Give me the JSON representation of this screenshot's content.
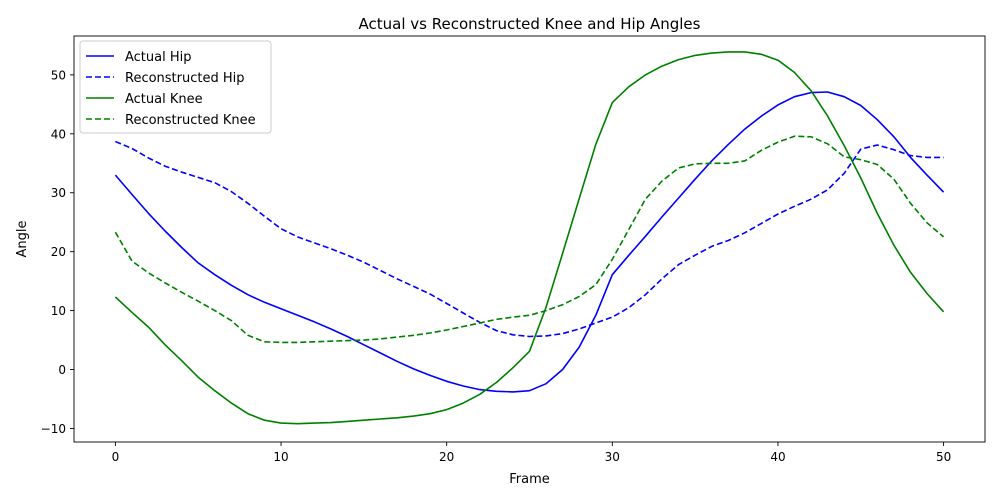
{
  "chart_data": {
    "type": "line",
    "title": "Actual vs Reconstructed Knee and Hip Angles",
    "xlabel": "Frame",
    "ylabel": "Angle",
    "xlim": [
      -2.5,
      52.5
    ],
    "ylim": [
      -12.3,
      56.6
    ],
    "xticks": [
      0,
      10,
      20,
      30,
      40,
      50
    ],
    "yticks": [
      -10,
      0,
      10,
      20,
      30,
      40,
      50
    ],
    "grid": false,
    "legend_position": "upper-left",
    "x": [
      0,
      1,
      2,
      3,
      4,
      5,
      6,
      7,
      8,
      9,
      10,
      11,
      12,
      13,
      14,
      15,
      16,
      17,
      18,
      19,
      20,
      21,
      22,
      23,
      24,
      25,
      26,
      27,
      28,
      29,
      30,
      31,
      32,
      33,
      34,
      35,
      36,
      37,
      38,
      39,
      40,
      41,
      42,
      43,
      44,
      45,
      46,
      47,
      48,
      49,
      50
    ],
    "series": [
      {
        "name": "Actual Hip",
        "color": "#0000ff",
        "dash": "solid",
        "values": [
          33.0,
          29.7,
          26.5,
          23.5,
          20.7,
          18.1,
          16.1,
          14.3,
          12.7,
          11.4,
          10.3,
          9.2,
          8.1,
          6.9,
          5.6,
          4.2,
          2.8,
          1.4,
          0.1,
          -1.0,
          -2.0,
          -2.8,
          -3.4,
          -3.7,
          -3.8,
          -3.6,
          -2.4,
          0.0,
          3.8,
          9.2,
          16.1,
          19.4,
          22.6,
          25.9,
          29.1,
          32.3,
          35.4,
          38.2,
          40.8,
          43.0,
          44.9,
          46.3,
          47.0,
          47.1,
          46.3,
          44.8,
          42.4,
          39.5,
          36.0,
          33.0,
          30.1
        ]
      },
      {
        "name": "Reconstructed Hip",
        "color": "#0000ff",
        "dash": "dashed",
        "values": [
          38.7,
          37.5,
          35.9,
          34.5,
          33.5,
          32.6,
          31.7,
          30.2,
          28.2,
          26.0,
          23.9,
          22.5,
          21.5,
          20.5,
          19.4,
          18.2,
          16.8,
          15.4,
          14.1,
          12.8,
          11.2,
          9.6,
          8.0,
          6.6,
          5.9,
          5.6,
          5.7,
          6.1,
          6.9,
          7.9,
          8.9,
          10.5,
          12.7,
          15.4,
          17.8,
          19.4,
          20.9,
          21.9,
          23.2,
          24.8,
          26.4,
          27.7,
          28.9,
          30.5,
          33.3,
          37.4,
          38.1,
          37.3,
          36.3,
          36.0,
          36.0
        ]
      },
      {
        "name": "Actual Knee",
        "color": "#008000",
        "dash": "solid",
        "values": [
          12.3,
          9.7,
          7.2,
          4.2,
          1.5,
          -1.3,
          -3.6,
          -5.7,
          -7.5,
          -8.6,
          -9.1,
          -9.2,
          -9.1,
          -9.0,
          -8.8,
          -8.6,
          -8.4,
          -8.2,
          -7.9,
          -7.5,
          -6.8,
          -5.7,
          -4.2,
          -2.2,
          0.3,
          3.1,
          10.6,
          19.7,
          29.0,
          38.2,
          45.3,
          48.0,
          50.0,
          51.5,
          52.6,
          53.3,
          53.7,
          53.9,
          53.9,
          53.5,
          52.5,
          50.4,
          47.3,
          43.0,
          38.0,
          32.5,
          26.5,
          21.1,
          16.5,
          12.9,
          9.8
        ]
      },
      {
        "name": "Reconstructed Knee",
        "color": "#008000",
        "dash": "dashed",
        "values": [
          23.3,
          18.4,
          16.4,
          14.7,
          13.1,
          11.6,
          10.0,
          8.3,
          5.8,
          4.7,
          4.6,
          4.6,
          4.7,
          4.8,
          4.9,
          5.0,
          5.2,
          5.5,
          5.8,
          6.2,
          6.7,
          7.3,
          7.9,
          8.5,
          8.9,
          9.2,
          10.0,
          11.0,
          12.4,
          14.4,
          18.7,
          23.8,
          28.9,
          32.0,
          34.2,
          34.9,
          35.0,
          35.0,
          35.4,
          37.2,
          38.6,
          39.6,
          39.5,
          38.3,
          36.1,
          35.6,
          34.8,
          32.3,
          28.2,
          24.9,
          22.5
        ]
      }
    ]
  }
}
